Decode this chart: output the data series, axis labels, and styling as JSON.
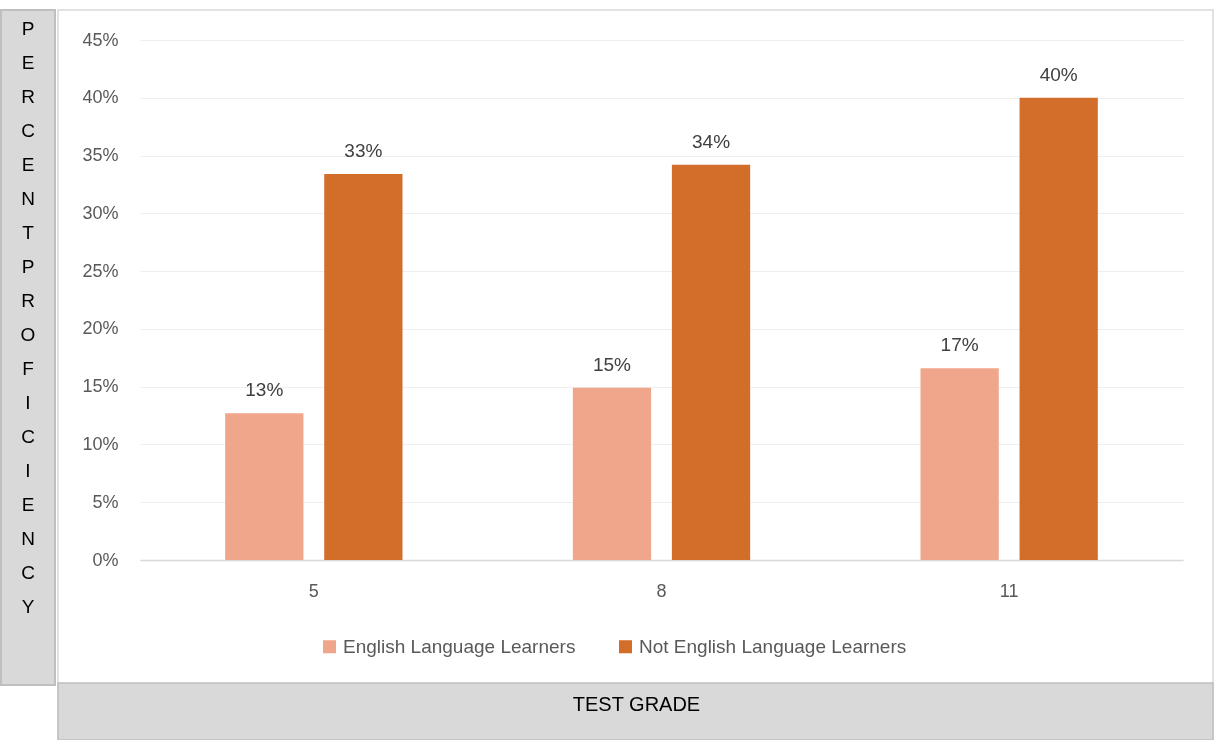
{
  "chart_data": {
    "type": "bar",
    "xlabel": "TEST GRADE",
    "ylabel": "PERCENT PROFICIENCY",
    "categories": [
      "5",
      "8",
      "11"
    ],
    "series": [
      {
        "name": "English Language Learners",
        "color": "#f0a68a",
        "values": [
          12.7,
          14.9,
          16.6
        ],
        "value_labels": [
          "13%",
          "15%",
          "17%"
        ]
      },
      {
        "name": "Not English Language Learners",
        "color": "#d36d2a",
        "values": [
          33.4,
          34.2,
          40.0
        ],
        "value_labels": [
          "33%",
          "34%",
          "40%"
        ]
      }
    ],
    "ylim": [
      0,
      45
    ],
    "yticks": [
      {
        "value": 0,
        "label": "0%"
      },
      {
        "value": 5,
        "label": "5%"
      },
      {
        "value": 10,
        "label": "10%"
      },
      {
        "value": 15,
        "label": "15%"
      },
      {
        "value": 20,
        "label": "20%"
      },
      {
        "value": 25,
        "label": "25%"
      },
      {
        "value": 30,
        "label": "30%"
      },
      {
        "value": 35,
        "label": "35%"
      },
      {
        "value": 40,
        "label": "40%"
      },
      {
        "value": 45,
        "label": "45%"
      }
    ],
    "grid": "y",
    "legend": "bottom"
  }
}
